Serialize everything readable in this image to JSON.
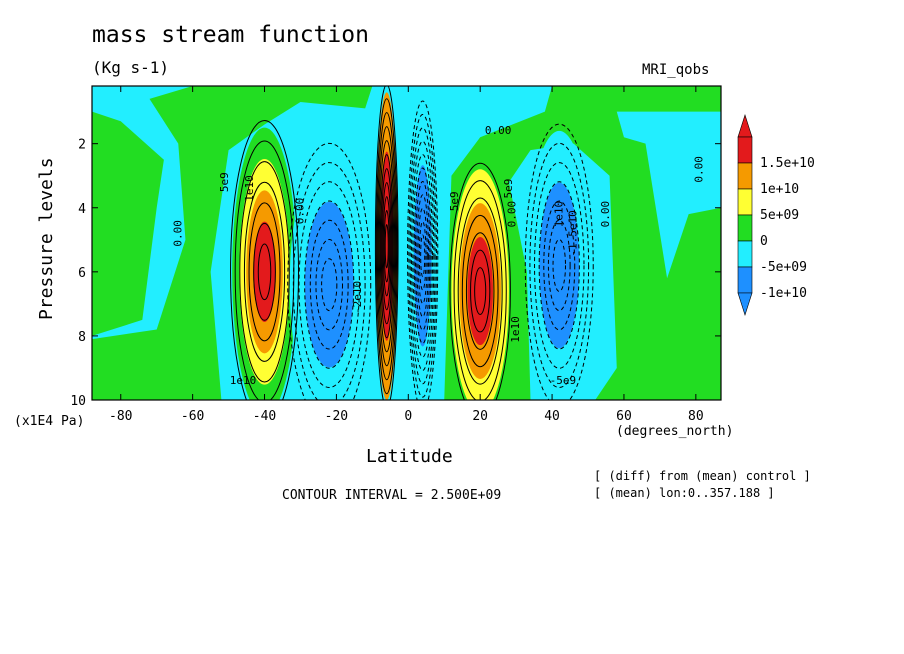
{
  "header": {
    "title": "mass stream function",
    "units": "(Kg s-1)",
    "model": "MRI_qobs"
  },
  "axes": {
    "xunits_left": "(x1E4 Pa)",
    "xunits_right": "(degrees_north)"
  },
  "footer": {
    "interval": "CONTOUR INTERVAL = 2.500E+09",
    "note1": "[ (diff) from (mean) control ]",
    "note2": "[ (mean) lon:0..357.188 ]"
  },
  "colors": {
    "red": "#e31a1c",
    "orange": "#f59a00",
    "yellow": "#ffff33",
    "green": "#22dd22",
    "cyan": "#22eeff",
    "blue": "#1e90ff",
    "darkred": "#b00000"
  },
  "chart_data": {
    "type": "heatmap",
    "title": "mass stream function",
    "xlabel": "Latitude",
    "ylabel": "Pressure levels",
    "xlim": [
      -88,
      87
    ],
    "ylim": [
      10,
      0.2
    ],
    "xticks": [
      -80,
      -60,
      -40,
      -20,
      0,
      20,
      40,
      60,
      80
    ],
    "xtick_labels": [
      "-80",
      "-60",
      "-40",
      "-20",
      "0",
      "20",
      "40",
      "60",
      "80"
    ],
    "yticks": [
      2,
      4,
      6,
      8,
      10
    ],
    "ytick_labels": [
      "2",
      "4",
      "6",
      "8",
      "10"
    ],
    "contour_interval": 2500000000.0,
    "legend": {
      "position": "right",
      "levels": [
        {
          "label": "1.5e+10",
          "color": "#e31a1c"
        },
        {
          "label": "1e+10",
          "color": "#f59a00"
        },
        {
          "label": "5e+09",
          "color": "#ffff33"
        },
        {
          "label": "0",
          "color": "#22dd22"
        },
        {
          "label": "-5e+09",
          "color": "#22eeff"
        },
        {
          "label": "-1e+10",
          "color": "#1e90ff"
        }
      ]
    },
    "cells": [
      {
        "name": "southern-positive-cell",
        "lat": -40,
        "lat_half": 9,
        "p": 6.0,
        "p_half": 4.5,
        "levels": [
          "#22dd22",
          "#ffff33",
          "#f59a00",
          "#e31a1c"
        ]
      },
      {
        "name": "southern-negative-cell",
        "lat": -22,
        "lat_half": 11,
        "p": 6.4,
        "p_half": 4.2,
        "levels": [
          "#22eeff",
          "#1e90ff"
        ]
      },
      {
        "name": "equatorial-positive-cell",
        "lat": -6,
        "lat_half": 3,
        "p": 5.2,
        "p_half": 4.8,
        "levels": [
          "#f59a00",
          "#e31a1c"
        ]
      },
      {
        "name": "equatorial-negative-cell",
        "lat": 4,
        "lat_half": 4,
        "p": 5.5,
        "p_half": 4.6,
        "levels": [
          "#22eeff",
          "#1e90ff"
        ]
      },
      {
        "name": "northern-positive-cell",
        "lat": 20,
        "lat_half": 8,
        "p": 6.6,
        "p_half": 3.8,
        "levels": [
          "#ffff33",
          "#f59a00",
          "#e31a1c"
        ]
      },
      {
        "name": "northern-negative-cell",
        "lat": 42,
        "lat_half": 9,
        "p": 5.8,
        "p_half": 4.2,
        "levels": [
          "#22eeff",
          "#1e90ff"
        ]
      }
    ],
    "contour_labels": [
      {
        "text": "0.00",
        "lat": -64,
        "p": 4.8,
        "rotate": -90
      },
      {
        "text": "5e9",
        "lat": -51,
        "p": 3.2,
        "rotate": -90
      },
      {
        "text": "1e10",
        "lat": -44,
        "p": 3.4,
        "rotate": -90
      },
      {
        "text": "1e10",
        "lat": -46,
        "p": 9.4,
        "rotate": 0
      },
      {
        "text": "0.00",
        "lat": -30,
        "p": 4.1,
        "rotate": -90
      },
      {
        "text": "-2e10",
        "lat": -14,
        "p": 6.8,
        "rotate": -90
      },
      {
        "text": "0.00",
        "lat": 25,
        "p": 1.6,
        "rotate": 0
      },
      {
        "text": "5e9",
        "lat": 13,
        "p": 3.8,
        "rotate": -90
      },
      {
        "text": "5e9",
        "lat": 28,
        "p": 3.4,
        "rotate": -90
      },
      {
        "text": "0.00",
        "lat": 29,
        "p": 4.2,
        "rotate": -90
      },
      {
        "text": "1e10",
        "lat": 42,
        "p": 4.2,
        "rotate": -90
      },
      {
        "text": "-1.5e10",
        "lat": 46,
        "p": 4.8,
        "rotate": -90
      },
      {
        "text": "0.00",
        "lat": 55,
        "p": 4.2,
        "rotate": -90
      },
      {
        "text": "0.00",
        "lat": 81,
        "p": 2.8,
        "rotate": -90
      },
      {
        "text": "-5e9",
        "lat": 43,
        "p": 9.4,
        "rotate": 0
      },
      {
        "text": "1e10",
        "lat": 30,
        "p": 7.8,
        "rotate": -90
      }
    ]
  }
}
